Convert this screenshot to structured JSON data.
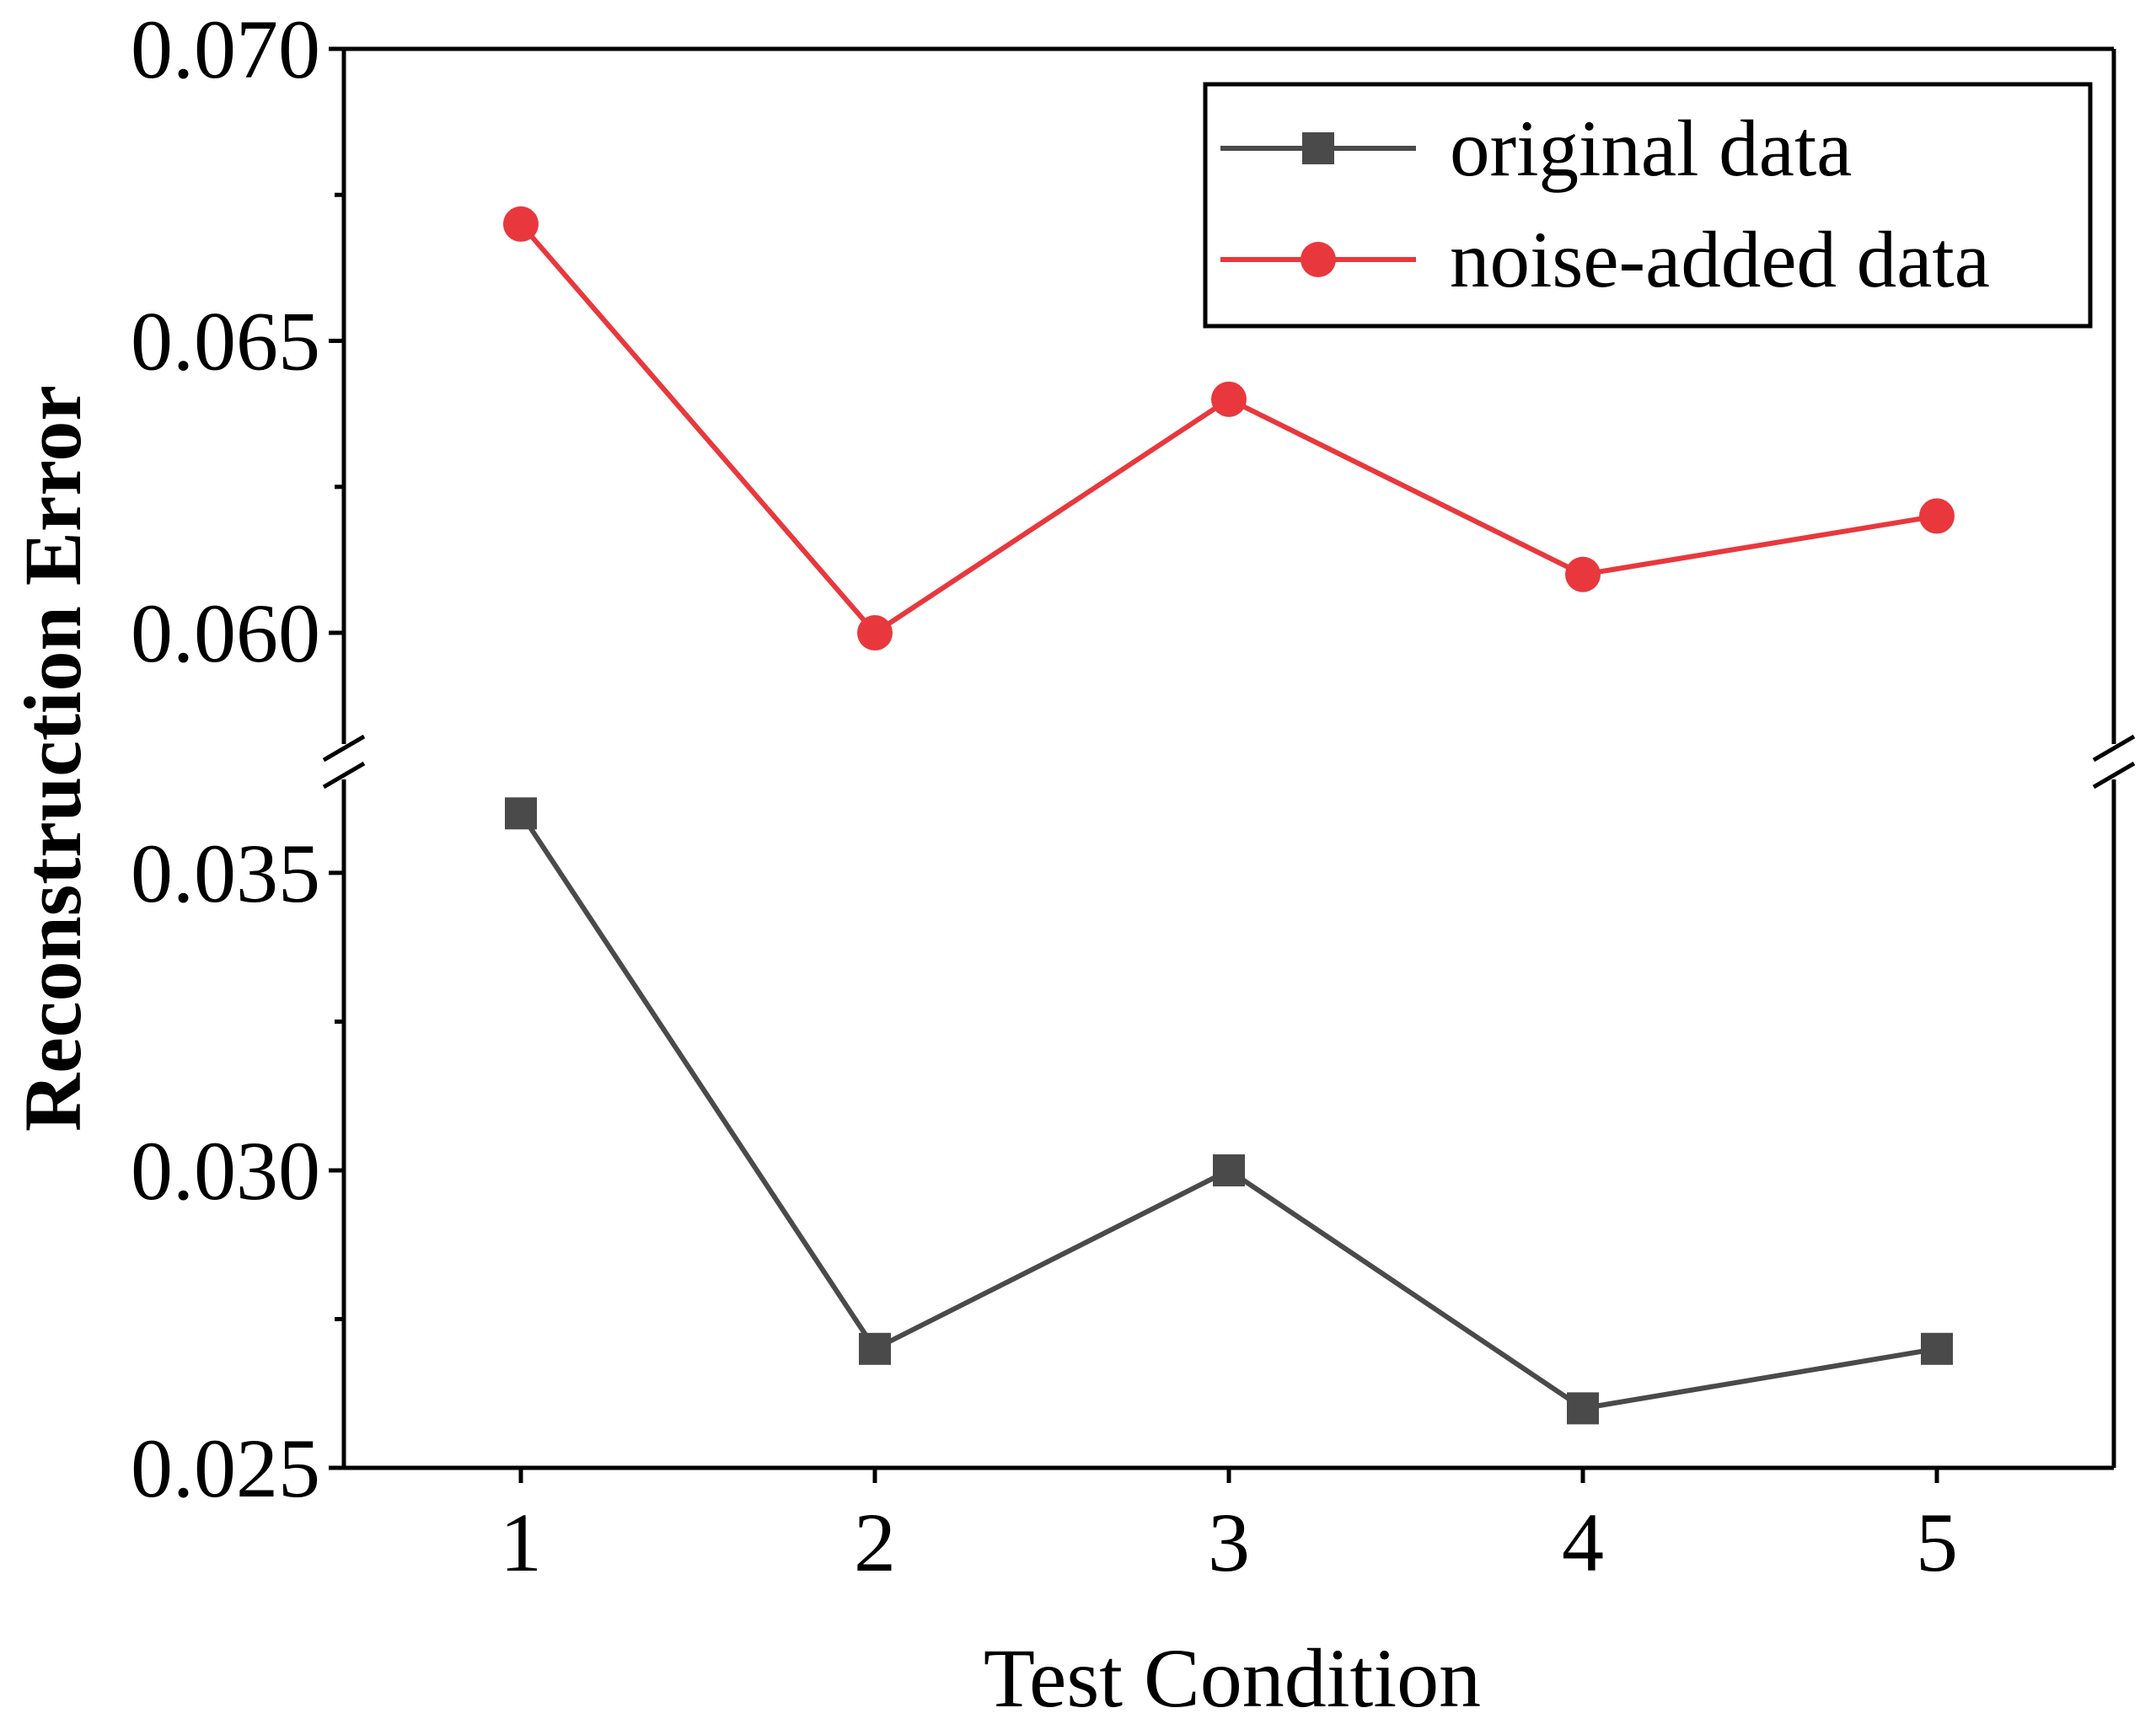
{
  "chart_data": {
    "type": "line",
    "title": "",
    "xlabel": "Test Condition",
    "ylabel": "Reconstruction Error",
    "x": [
      1,
      2,
      3,
      4,
      5
    ],
    "x_tick_labels": [
      "1",
      "2",
      "3",
      "4",
      "5"
    ],
    "y_axis_break": true,
    "y_segments": [
      {
        "range": [
          0.025,
          0.0365
        ],
        "ticks": [
          "0.025",
          "0.030",
          "0.035"
        ]
      },
      {
        "range": [
          0.0585,
          0.07
        ],
        "ticks": [
          "0.060",
          "0.065",
          "0.070"
        ]
      }
    ],
    "series": [
      {
        "name": "original data",
        "color": "#4a4a4a",
        "marker": "square",
        "values": [
          0.036,
          0.027,
          0.03,
          0.026,
          0.027
        ]
      },
      {
        "name": "noise-added data",
        "color": "#e8383d",
        "marker": "circle",
        "values": [
          0.067,
          0.06,
          0.064,
          0.061,
          0.062
        ]
      }
    ],
    "legend_position": "top-right",
    "grid": false
  }
}
